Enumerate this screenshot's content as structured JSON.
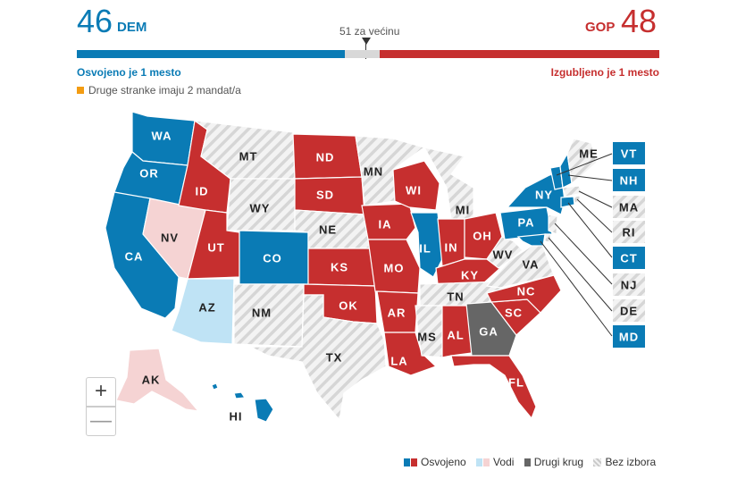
{
  "header": {
    "dem_count": "46",
    "dem_label": "DEM",
    "gop_label": "GOP",
    "gop_count": "48",
    "majority_label": "51 za većinu",
    "dem_note": "Osvojeno je 1 mesto",
    "gop_note": "Izgubljeno je 1 mesto",
    "other_note": "Druge stranke imaju 2 mandat/a"
  },
  "seat_bar": {
    "total_seats": 100,
    "dem_seats": 46,
    "gop_seats": 48,
    "majority": 51
  },
  "colors": {
    "dem": "#0a7bb5",
    "gop": "#c62f2f",
    "dem_leading": "#bfe3f5",
    "gop_leading": "#f5d3d3",
    "runoff": "#666666",
    "no_election": "#e8e8e8",
    "other_parties": "#f39c12"
  },
  "states": {
    "WA": "dem",
    "OR": "dem",
    "CA": "dem",
    "NV": "gop_leading",
    "ID": "gop",
    "MT": "no_election",
    "WY": "no_election",
    "UT": "gop",
    "CO": "dem",
    "AZ": "dem_leading",
    "NM": "no_election",
    "ND": "gop",
    "SD": "gop",
    "NE": "no_election",
    "KS": "gop",
    "OK": "gop",
    "TX": "no_election",
    "MN": "no_election",
    "IA": "gop",
    "MO": "gop",
    "AR": "gop",
    "LA": "gop",
    "WI": "gop",
    "IL": "dem",
    "MI": "no_election",
    "IN": "gop",
    "OH": "gop",
    "KY": "gop",
    "TN": "no_election",
    "MS": "no_election",
    "AL": "gop",
    "GA": "runoff",
    "FL": "gop",
    "SC": "gop",
    "NC": "gop",
    "VA": "no_election",
    "WV": "no_election",
    "PA": "dem",
    "NY": "dem",
    "ME": "no_election",
    "VT": "dem",
    "NH": "dem",
    "MA": "no_election",
    "RI": "no_election",
    "CT": "dem",
    "NJ": "no_election",
    "DE": "no_election",
    "MD": "dem",
    "AK": "gop_leading",
    "HI": "dem"
  },
  "labels": {
    "WA": "WA",
    "OR": "OR",
    "CA": "CA",
    "NV": "NV",
    "ID": "ID",
    "MT": "MT",
    "WY": "WY",
    "UT": "UT",
    "CO": "CO",
    "AZ": "AZ",
    "NM": "NM",
    "ND": "ND",
    "SD": "SD",
    "NE": "NE",
    "KS": "KS",
    "OK": "OK",
    "TX": "TX",
    "MN": "MN",
    "IA": "IA",
    "MO": "MO",
    "AR": "AR",
    "LA": "LA",
    "WI": "WI",
    "IL": "IL",
    "MI": "MI",
    "IN": "IN",
    "OH": "OH",
    "KY": "KY",
    "TN": "TN",
    "MS": "MS",
    "AL": "AL",
    "GA": "GA",
    "FL": "FL",
    "SC": "SC",
    "NC": "NC",
    "VA": "VA",
    "WV": "WV",
    "PA": "PA",
    "NY": "NY",
    "ME": "ME",
    "AK": "AK",
    "HI": "HI",
    "VT": "VT",
    "NH": "NH",
    "MA": "MA",
    "RI": "RI",
    "CT": "CT",
    "NJ": "NJ",
    "DE": "DE",
    "MD": "MD"
  },
  "zoom": {
    "in_label": "+",
    "out_label": "—"
  },
  "legend": {
    "won": "Osvojeno",
    "leading": "Vodi",
    "runoff": "Drugi krug",
    "no_election": "Bez izbora"
  }
}
